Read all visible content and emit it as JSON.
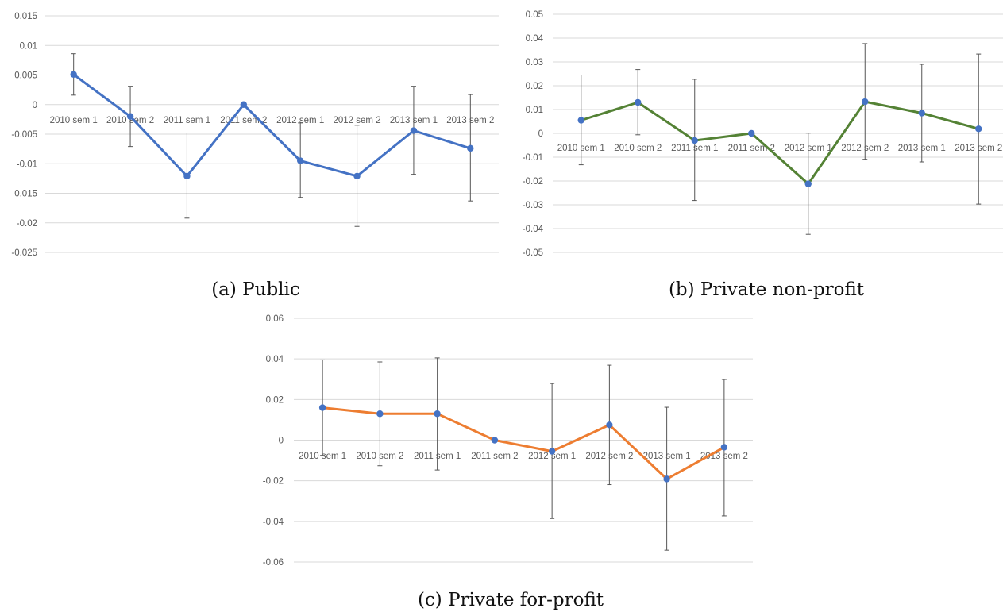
{
  "chart_data": [
    {
      "type": "line",
      "caption": "(a) Public",
      "categories": [
        "2010 sem 1",
        "2010 sem 2",
        "2011 sem 1",
        "2011 sem 2",
        "2012 sem 1",
        "2012 sem 2",
        "2013 sem 1",
        "2013 sem 2"
      ],
      "yticks": [
        "0.015",
        "0.01",
        "0.005",
        "0",
        "-0.005",
        "-0.01",
        "-0.015",
        "-0.02",
        "-0.025"
      ],
      "ylim": [
        -0.025,
        0.015
      ],
      "grid": true,
      "color": "#4472c4",
      "series": [
        {
          "values": [
            0.0051,
            -0.002,
            -0.0121,
            0.0,
            -0.0095,
            -0.0121,
            -0.0044,
            -0.0074
          ],
          "err_low": [
            0.0016,
            -0.0071,
            -0.0192,
            null,
            -0.0157,
            -0.0206,
            -0.0118,
            -0.0163
          ],
          "err_high": [
            0.0086,
            0.0031,
            -0.0048,
            null,
            -0.0031,
            -0.0035,
            0.0031,
            0.0017
          ]
        }
      ]
    },
    {
      "type": "line",
      "caption": "(b) Private non-profit",
      "categories": [
        "2010 sem 1",
        "2010 sem 2",
        "2011 sem 1",
        "2011 sem 2",
        "2012 sem 1",
        "2012 sem 2",
        "2013 sem 1",
        "2013 sem 2"
      ],
      "yticks": [
        "0.05",
        "0.04",
        "0.03",
        "0.02",
        "0.01",
        "0",
        "-0.01",
        "-0.02",
        "-0.03",
        "-0.04",
        "-0.05"
      ],
      "ylim": [
        -0.05,
        0.05
      ],
      "grid": true,
      "color": "#548235",
      "series": [
        {
          "values": [
            0.0055,
            0.013,
            -0.003,
            0.0,
            -0.0212,
            0.0133,
            0.0085,
            0.0019
          ],
          "err_low": [
            -0.0132,
            -0.0006,
            -0.0282,
            null,
            -0.0424,
            -0.0109,
            -0.012,
            -0.0297
          ],
          "err_high": [
            0.0245,
            0.0268,
            0.0227,
            null,
            0.0001,
            0.0377,
            0.029,
            0.0333
          ]
        }
      ]
    },
    {
      "type": "line",
      "caption": "(c) Private for-profit",
      "categories": [
        "2010 sem 1",
        "2010 sem 2",
        "2011 sem 1",
        "2011 sem 2",
        "2012 sem 1",
        "2012 sem 2",
        "2013 sem 1",
        "2013 sem 2"
      ],
      "yticks": [
        "0.06",
        "0.04",
        "0.02",
        "0",
        "-0.02",
        "-0.04",
        "-0.06"
      ],
      "ylim": [
        -0.06,
        0.06
      ],
      "grid": true,
      "color": "#ed7d31",
      "series": [
        {
          "values": [
            0.016,
            0.013,
            0.013,
            0.0,
            -0.0055,
            0.0075,
            -0.0191,
            -0.0035
          ],
          "err_low": [
            -0.0075,
            -0.0126,
            -0.0147,
            null,
            -0.0386,
            -0.0219,
            -0.0542,
            -0.0373
          ],
          "err_high": [
            0.0395,
            0.0385,
            0.0405,
            null,
            0.0279,
            0.0369,
            0.0162,
            0.0299
          ]
        }
      ]
    }
  ]
}
